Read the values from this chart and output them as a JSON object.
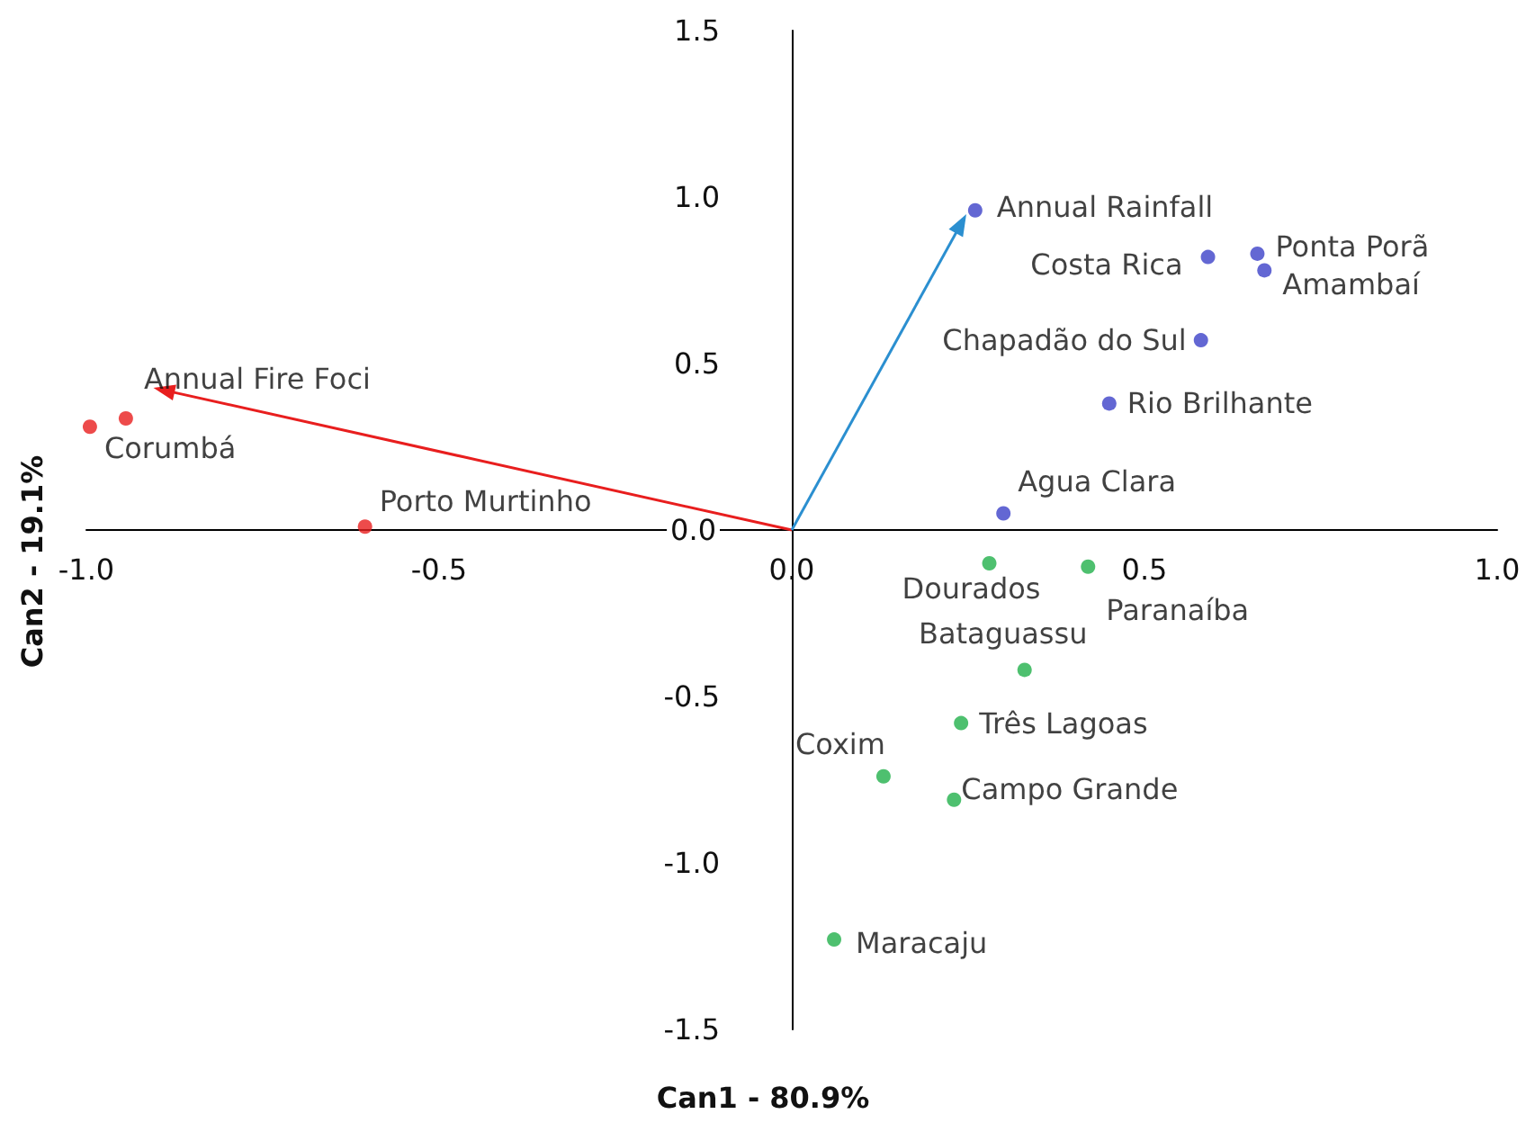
{
  "chart_data": {
    "type": "scatter",
    "xlabel": "Can1 - 80.9%",
    "ylabel": "Can2 - 19.1%",
    "xlim": [
      -1,
      1
    ],
    "ylim": [
      -1.5,
      1.5
    ],
    "xticks": [
      {
        "value": -1,
        "label": "-1.0"
      },
      {
        "value": -0.5,
        "label": "-0.5"
      },
      {
        "value": 0,
        "label": "0.0"
      },
      {
        "value": 0.5,
        "label": "0.5"
      },
      {
        "value": 1,
        "label": "1.0"
      }
    ],
    "yticks": [
      {
        "value": -1.5,
        "label": "-1.5"
      },
      {
        "value": -1,
        "label": "-1.0"
      },
      {
        "value": -0.5,
        "label": "-0.5"
      },
      {
        "value": 0,
        "label": "0.0"
      },
      {
        "value": 0.5,
        "label": "0.5"
      },
      {
        "value": 1,
        "label": "1.0"
      },
      {
        "value": 1.5,
        "label": "1.5"
      }
    ],
    "grid": false,
    "marker": "circle",
    "series": [
      {
        "color": "#e81e1e",
        "x": [
          -0.944,
          -0.995,
          -0.605
        ],
        "values": [
          0.335,
          0.31,
          0.01
        ]
      },
      {
        "color": "#3c41c8",
        "x": [
          0.26,
          0.59,
          0.66,
          0.67,
          0.58,
          0.45,
          0.3
        ],
        "values": [
          0.96,
          0.82,
          0.83,
          0.78,
          0.57,
          0.38,
          0.05
        ]
      },
      {
        "color": "#22b04b",
        "x": [
          0.28,
          0.42,
          0.33,
          0.24,
          0.13,
          0.23,
          0.06
        ],
        "values": [
          -0.1,
          -0.11,
          -0.42,
          -0.58,
          -0.74,
          -0.81,
          -1.23
        ]
      },
      {
        "type": "line",
        "marker": "triangle",
        "color": "#e81e1e",
        "x": [
          0,
          -0.89
        ],
        "values": [
          0,
          0.42
        ]
      },
      {
        "type": "line",
        "marker": "triangle",
        "color": "#2b8fd0",
        "x": [
          0,
          0.24
        ],
        "values": [
          0,
          0.92
        ]
      }
    ],
    "annotations": [
      {
        "text": "Annual Fire Foci",
        "x": -0.944,
        "y": 0.335
      },
      {
        "text": "Corumbá",
        "x": -0.995,
        "y": 0.31
      },
      {
        "text": "Porto Murtinho",
        "x": -0.605,
        "y": 0.01
      },
      {
        "text": "Annual Rainfall",
        "x": 0.26,
        "y": 0.96
      },
      {
        "text": "Costa Rica",
        "x": 0.59,
        "y": 0.82
      },
      {
        "text": "Ponta Porã",
        "x": 0.66,
        "y": 0.83
      },
      {
        "text": "Amambaí",
        "x": 0.67,
        "y": 0.78
      },
      {
        "text": "Chapadão do Sul",
        "x": 0.58,
        "y": 0.57
      },
      {
        "text": "Rio Brilhante",
        "x": 0.45,
        "y": 0.38
      },
      {
        "text": "Agua Clara",
        "x": 0.3,
        "y": 0.05
      },
      {
        "text": "Dourados",
        "x": 0.28,
        "y": -0.1
      },
      {
        "text": "Paranaíba",
        "x": 0.42,
        "y": -0.11
      },
      {
        "text": "Bataguassu",
        "x": 0.33,
        "y": -0.42
      },
      {
        "text": "Três Lagoas",
        "x": 0.24,
        "y": -0.58
      },
      {
        "text": "Coxim",
        "x": 0.13,
        "y": -0.74
      },
      {
        "text": "Campo Grande",
        "x": 0.23,
        "y": -0.81
      },
      {
        "text": "Maracaju",
        "x": 0.06,
        "y": -1.23
      }
    ]
  }
}
